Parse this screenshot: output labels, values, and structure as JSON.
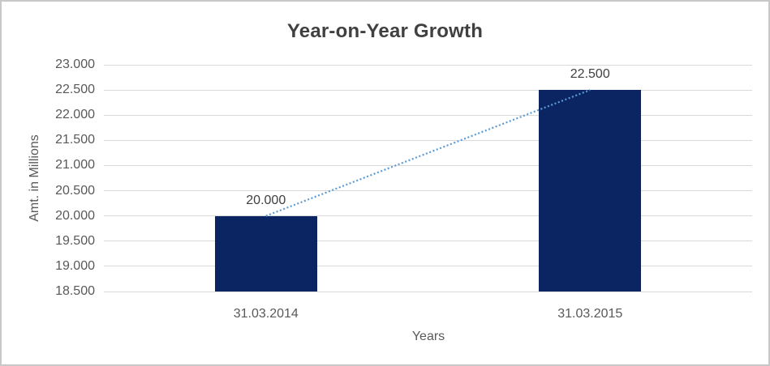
{
  "chart_data": {
    "type": "bar",
    "title": "Year-on-Year Growth",
    "xlabel": "Years",
    "ylabel": "Amt. in Millions",
    "categories": [
      "31.03.2014",
      "31.03.2015"
    ],
    "values": [
      20000,
      22500
    ],
    "data_labels": [
      "20.000",
      "22.500"
    ],
    "ylim": [
      18500,
      23000
    ],
    "ytick_step": 500,
    "ytick_labels": [
      "23.000",
      "22.500",
      "22.000",
      "21.500",
      "21.000",
      "20.500",
      "20.000",
      "19.500",
      "19.000",
      "18.500"
    ],
    "grid": true,
    "legend": "none",
    "trendline": {
      "style": "dotted",
      "description": "dotted growth line connecting bar tops from 20.000 to 22.500"
    },
    "colors": {
      "bar": "#0B2562",
      "trendline": "#5B9BD5",
      "gridline": "#D9D9D9",
      "title_text": "#404040",
      "axis_text": "#595959",
      "border": "#C8C8C8",
      "background": "#FFFFFF"
    }
  }
}
